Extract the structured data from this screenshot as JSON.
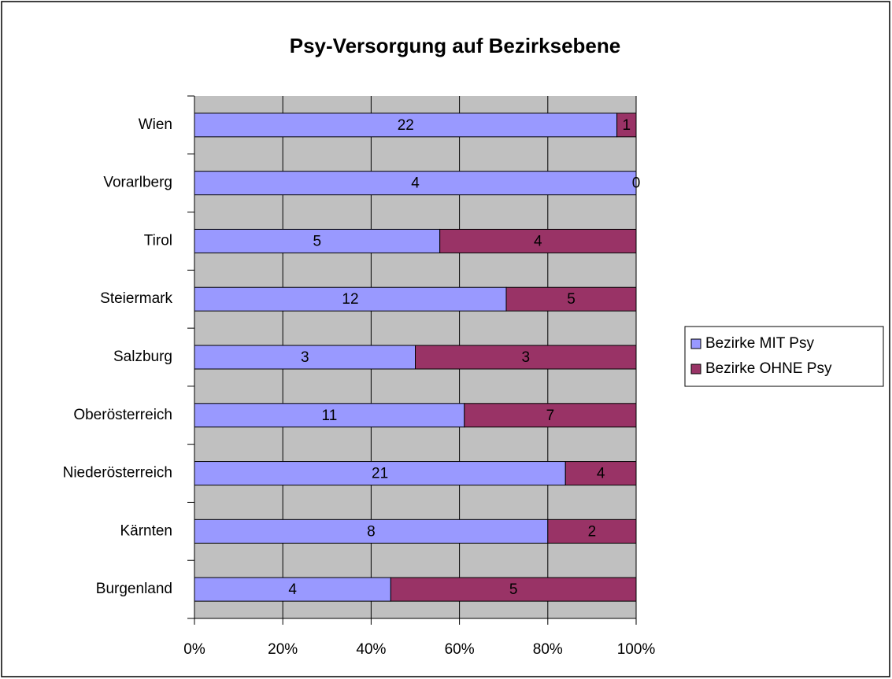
{
  "chart_data": {
    "type": "bar",
    "orientation": "horizontal",
    "stacking": "percent",
    "title": "Psy-Versorgung auf Bezirksebene",
    "categories": [
      "Wien",
      "Vorarlberg",
      "Tirol",
      "Steiermark",
      "Salzburg",
      "Oberösterreich",
      "Niederösterreich",
      "Kärnten",
      "Burgenland"
    ],
    "series": [
      {
        "name": "Bezirke MIT Psy",
        "color": "#9999ff",
        "values": [
          22,
          4,
          5,
          12,
          3,
          11,
          21,
          8,
          4
        ]
      },
      {
        "name": "Bezirke OHNE Psy",
        "color": "#993366",
        "values": [
          1,
          0,
          4,
          5,
          3,
          7,
          4,
          2,
          5
        ]
      }
    ],
    "xlim": [
      0,
      100
    ],
    "xticks": [
      {
        "value": 0,
        "label": "0%"
      },
      {
        "value": 20,
        "label": "20%"
      },
      {
        "value": 40,
        "label": "40%"
      },
      {
        "value": 60,
        "label": "60%"
      },
      {
        "value": 80,
        "label": "80%"
      },
      {
        "value": 100,
        "label": "100%"
      }
    ],
    "grid": true,
    "legend": "right"
  }
}
